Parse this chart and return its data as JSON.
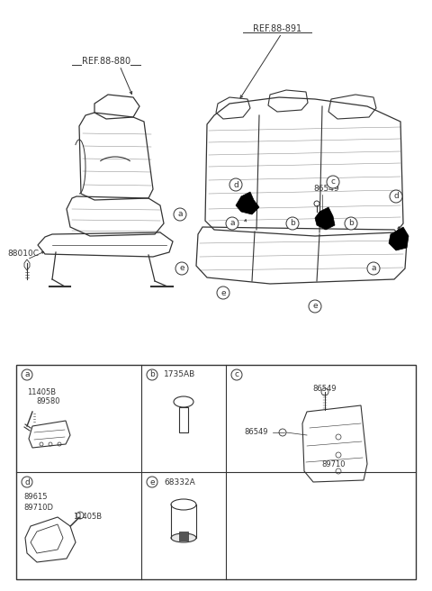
{
  "bg_color": "#ffffff",
  "line_color": "#333333",
  "ref_880": "REF.88-880",
  "ref_891": "REF.88-891",
  "label_88010C": "88010C",
  "label_86549": "86549",
  "table_cells": {
    "a_partnum1": "11405B",
    "a_partnum2": "89580",
    "b_partnum": "1735AB",
    "c_partnum1": "86549",
    "c_partnum2": "86549",
    "c_partnum3": "89710",
    "d_partnum1": "89615",
    "d_partnum2": "89710D",
    "d_partnum3": "11405B",
    "e_partnum": "68332A"
  }
}
